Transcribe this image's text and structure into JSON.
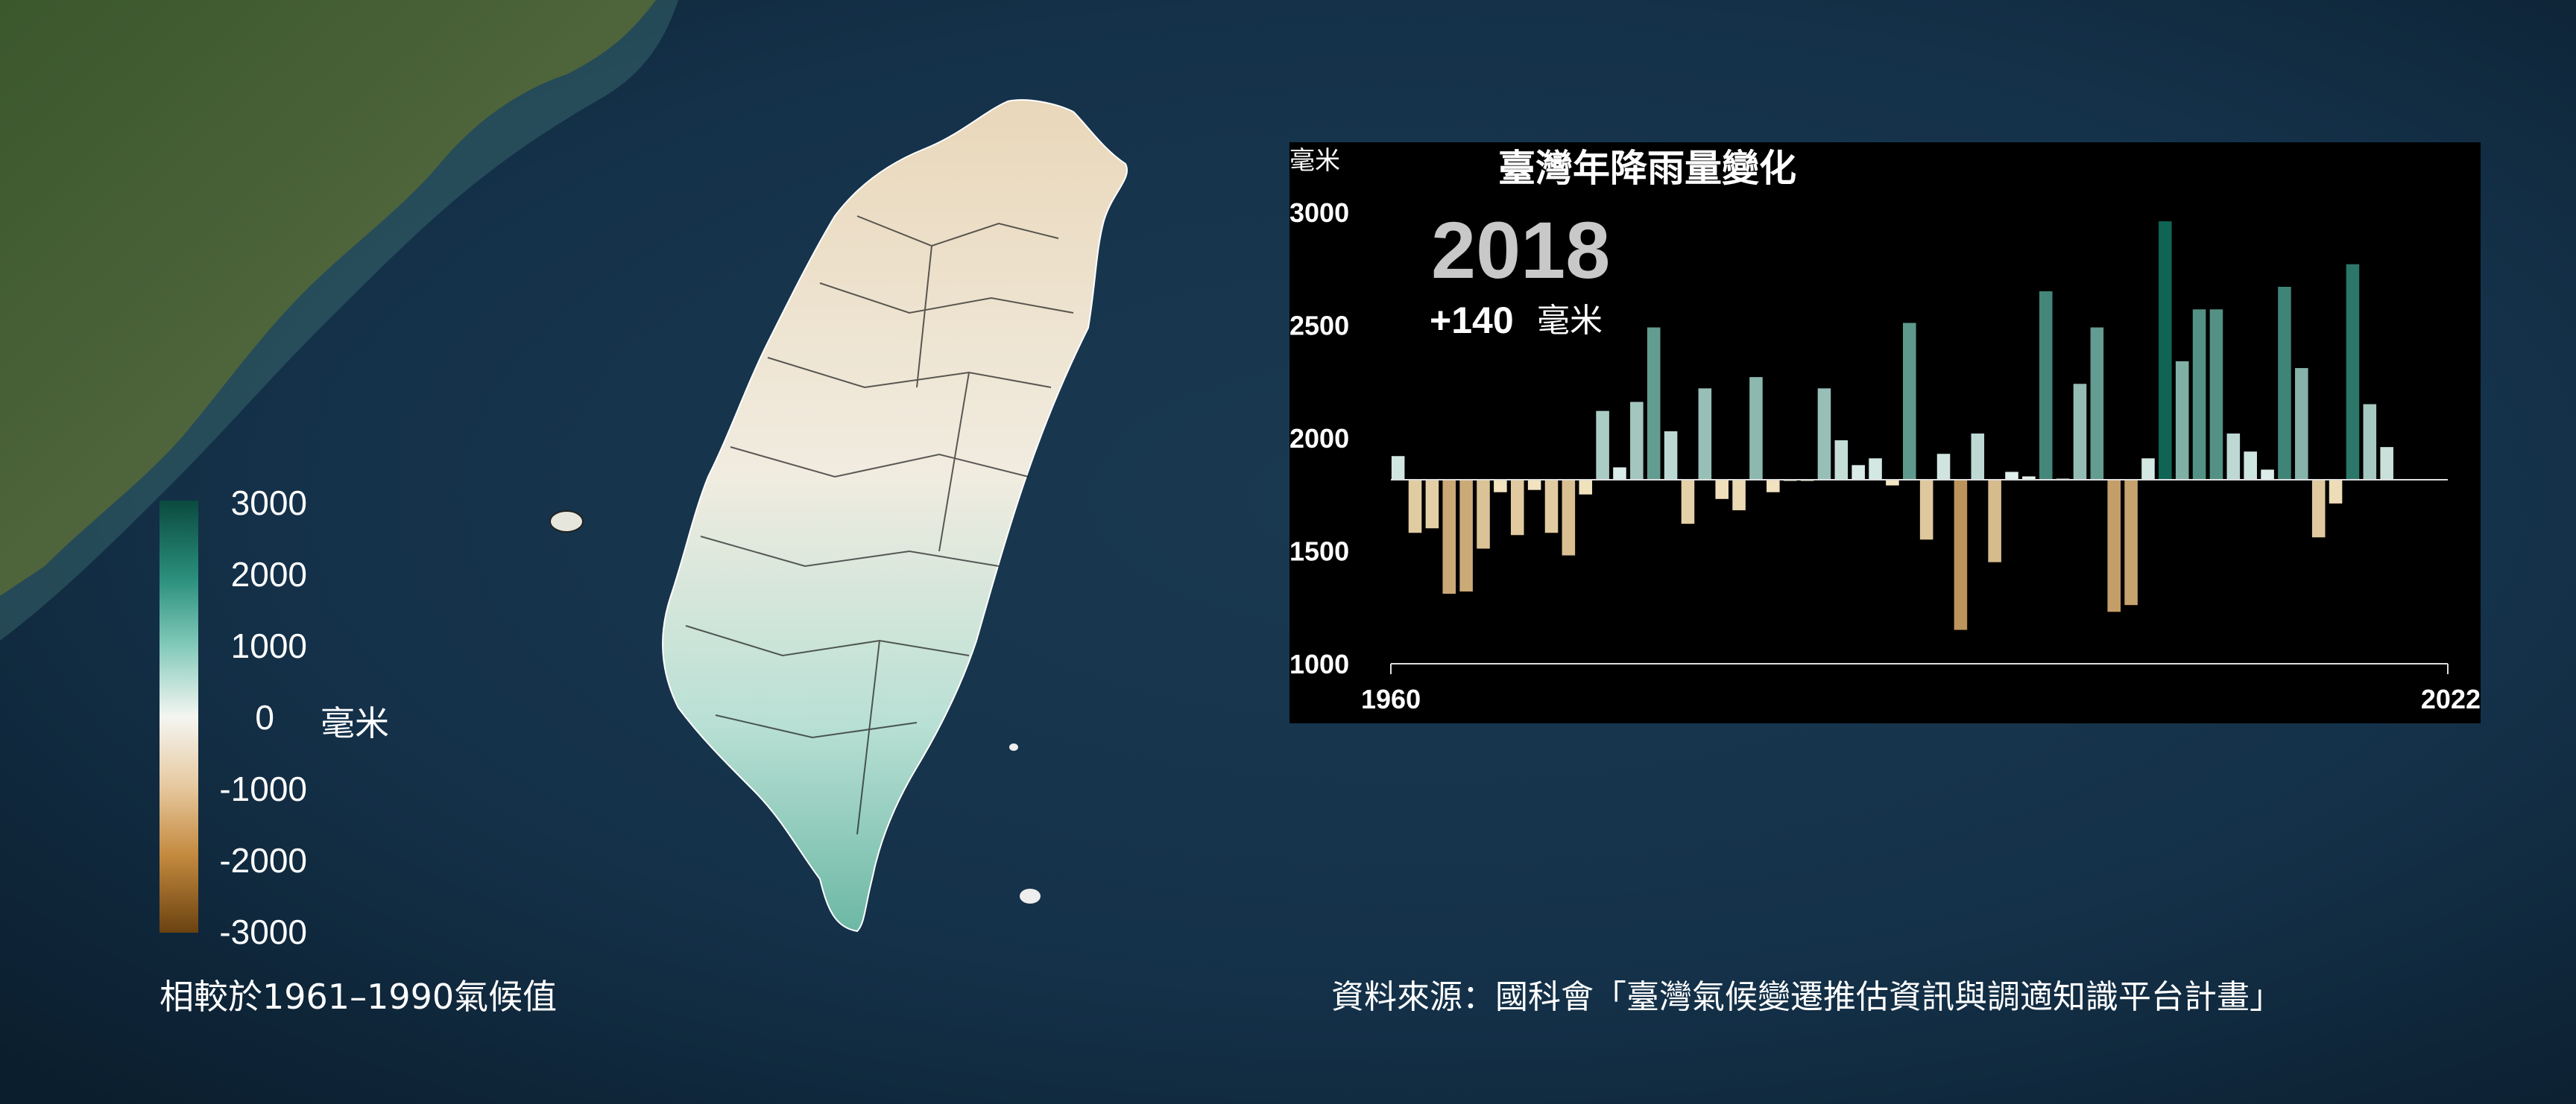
{
  "legend": {
    "ticks": [
      "3000",
      "2000",
      "1000",
      "0",
      "-1000",
      "-2000",
      "-3000"
    ],
    "unit": "毫米",
    "baseline_note": "相較於1961–1990氣候值",
    "colors": {
      "max": "#0b4a3f",
      "zero": "#f4f6f2",
      "min": "#6b4210"
    }
  },
  "source_note": "資料來源：國科會「臺灣氣候變遷推估資訊與調適知識平台計畫」",
  "map": {
    "regions": [
      "Taiwan",
      "Penghu Islands",
      "Green Island",
      "Orchid Island",
      "Fujian coast"
    ]
  },
  "chart_data": {
    "type": "bar",
    "title": "臺灣年降雨量變化",
    "ylabel": "毫米",
    "ylim": [
      1000,
      3000
    ],
    "yticks": [
      "3000",
      "2500",
      "2000",
      "1500",
      "1000"
    ],
    "xtick_labels": [
      "1960",
      "2022"
    ],
    "baseline": 1815,
    "highlight": {
      "year": "2018",
      "delta": "+140",
      "unit": "毫米"
    },
    "x": [
      1960,
      1961,
      1962,
      1963,
      1964,
      1965,
      1966,
      1967,
      1968,
      1969,
      1970,
      1971,
      1972,
      1973,
      1974,
      1975,
      1976,
      1977,
      1978,
      1979,
      1980,
      1981,
      1982,
      1983,
      1984,
      1985,
      1986,
      1987,
      1988,
      1989,
      1990,
      1991,
      1992,
      1993,
      1994,
      1995,
      1996,
      1997,
      1998,
      1999,
      2000,
      2001,
      2002,
      2003,
      2004,
      2005,
      2006,
      2007,
      2008,
      2009,
      2010,
      2011,
      2012,
      2013,
      2014,
      2015,
      2016,
      2017,
      2018
    ],
    "values": [
      1920,
      1580,
      1600,
      1310,
      1320,
      1510,
      1760,
      1570,
      1770,
      1580,
      1480,
      1750,
      2120,
      1870,
      2160,
      2490,
      2030,
      1620,
      2220,
      1730,
      1680,
      2270,
      1760,
      1810,
      1810,
      2220,
      1990,
      1880,
      1910,
      1790,
      2510,
      1550,
      1930,
      1150,
      2020,
      1450,
      1850,
      1830,
      2650,
      1820,
      2240,
      2490,
      1230,
      1260,
      1910,
      2960,
      2340,
      2570,
      2570,
      2020,
      1940,
      1860,
      2670,
      2310,
      1560,
      1710,
      2770,
      2150,
      1960
    ]
  }
}
